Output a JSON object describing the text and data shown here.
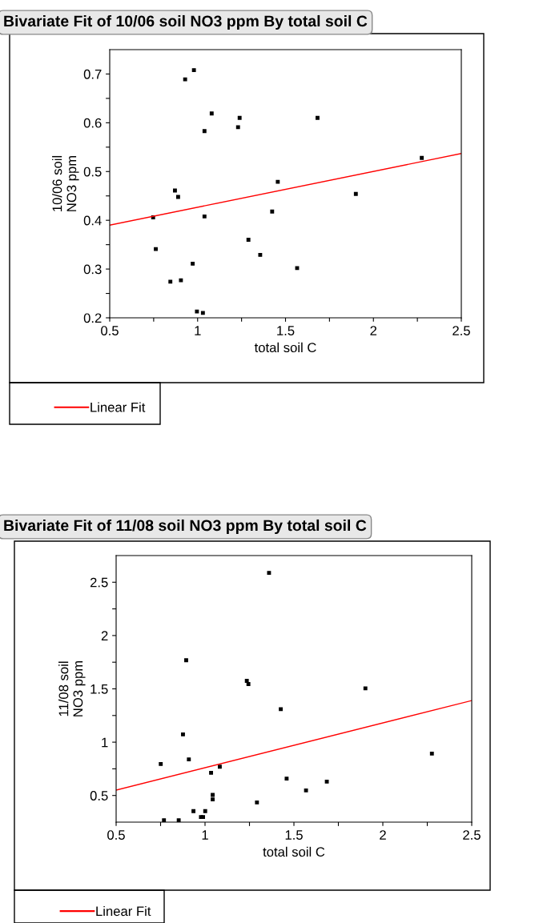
{
  "chart_data": [
    {
      "type": "scatter",
      "title": "Bivariate Fit of 10/06 soil NO3 ppm By total soil C",
      "xlabel": "total soil C",
      "ylabel": "10/06 soil\nNO3 ppm",
      "xlim": [
        0.5,
        2.5
      ],
      "xticks": [
        0.5,
        {
          "value": 0.75,
          "label": null
        },
        1,
        {
          "value": 1.25,
          "label": null
        },
        1.5,
        {
          "value": 1.75,
          "label": null
        },
        2,
        {
          "value": 2.25,
          "label": null
        },
        2.5
      ],
      "ylim": [
        0.2,
        0.75
      ],
      "yticks": [
        0.2,
        {
          "value": 0.25,
          "label": null
        },
        0.3,
        {
          "value": 0.35,
          "label": null
        },
        0.4,
        {
          "value": 0.45,
          "label": null
        },
        0.5,
        {
          "value": 0.55,
          "label": null
        },
        0.6,
        {
          "value": 0.65,
          "label": null
        },
        0.7
      ],
      "grid": false,
      "legend": "bottom",
      "series": [
        {
          "marker": "square",
          "color": "#000000",
          "x": [
            0.747,
            0.762,
            0.845,
            0.871,
            0.889,
            0.905,
            0.929,
            0.972,
            0.979,
            0.996,
            1.03,
            1.039,
            1.039,
            1.08,
            1.23,
            1.239,
            1.289,
            1.356,
            1.424,
            1.456,
            1.566,
            1.682,
            1.9,
            2.275
          ],
          "values": [
            0.406,
            0.341,
            0.274,
            0.461,
            0.448,
            0.277,
            0.689,
            0.311,
            0.708,
            0.213,
            0.21,
            0.583,
            0.408,
            0.619,
            0.591,
            0.61,
            0.36,
            0.329,
            0.418,
            0.479,
            0.302,
            0.61,
            0.454,
            0.528
          ]
        },
        {
          "type": "line",
          "name": "Linear Fit",
          "color": "#ff0000",
          "x": [
            0.5,
            2.5
          ],
          "values": [
            0.39,
            0.537
          ]
        }
      ]
    },
    {
      "type": "scatter",
      "title": "Bivariate Fit of 11/08 soil NO3 ppm By total soil C",
      "xlabel": "total soil C",
      "ylabel": "11/08 soil\nNO3 ppm",
      "xlim": [
        0.5,
        2.5
      ],
      "xticks": [
        0.5,
        {
          "value": 0.75,
          "label": null
        },
        1,
        {
          "value": 1.25,
          "label": null
        },
        1.5,
        {
          "value": 1.75,
          "label": null
        },
        2,
        {
          "value": 2.25,
          "label": null
        },
        2.5
      ],
      "ylim": [
        0.25,
        2.75
      ],
      "yticks": [
        0.5,
        {
          "value": 0.75,
          "label": null
        },
        1,
        {
          "value": 1.25,
          "label": null
        },
        1.5,
        {
          "value": 1.75,
          "label": null
        },
        2,
        {
          "value": 2.25,
          "label": null
        },
        2.5
      ],
      "grid": false,
      "legend": "bottom",
      "series": [
        {
          "marker": "square",
          "color": "#000000",
          "x": [
            0.751,
            0.769,
            0.852,
            0.876,
            0.894,
            0.909,
            0.935,
            0.977,
            0.989,
            1.001,
            1.034,
            1.043,
            1.043,
            1.083,
            1.235,
            1.244,
            1.292,
            1.36,
            1.426,
            1.459,
            1.568,
            1.685,
            1.902,
            2.276
          ],
          "values": [
            0.795,
            0.268,
            0.268,
            1.073,
            1.768,
            0.838,
            0.353,
            0.298,
            0.298,
            0.353,
            0.713,
            0.505,
            0.463,
            0.77,
            1.575,
            1.545,
            0.435,
            2.588,
            1.31,
            0.658,
            0.548,
            0.63,
            1.505,
            0.893
          ]
        },
        {
          "type": "line",
          "name": "Linear Fit",
          "color": "#ff0000",
          "x": [
            0.5,
            2.5
          ],
          "values": [
            0.55,
            1.39
          ]
        }
      ]
    }
  ]
}
